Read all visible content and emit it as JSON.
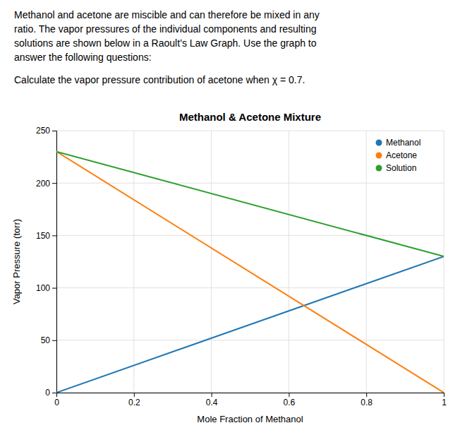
{
  "chart_data": {
    "type": "line",
    "title": "Methanol & Acetone Mixture",
    "xlabel": "Mole Fraction of Methanol",
    "ylabel": "Vapor Pressure (torr)",
    "annotations": [
      "Methanol and acetone are miscible and can therefore be mixed in any",
      "ratio. The vapor pressures of the individual components and resulting",
      "solutions are shown below in a Raoult’s Law Graph. Use the graph to",
      "answer the following questions:",
      "Calculate the vapor pressure contribution of acetone when χ = 0.7."
    ],
    "x": [
      0,
      1
    ],
    "series": [
      {
        "name": "Methanol",
        "values": [
          0,
          130
        ]
      },
      {
        "name": "Acetone",
        "values": [
          230,
          0
        ]
      },
      {
        "name": "Solution",
        "values": [
          230,
          130
        ]
      }
    ],
    "xlim": [
      0,
      1
    ],
    "ylim": [
      0,
      250
    ],
    "xticks": [
      0,
      0.2,
      0.4,
      0.6,
      0.8,
      1
    ],
    "yticks": [
      0,
      50,
      100,
      150,
      200,
      250
    ],
    "grid": true,
    "legend": "upper right"
  }
}
